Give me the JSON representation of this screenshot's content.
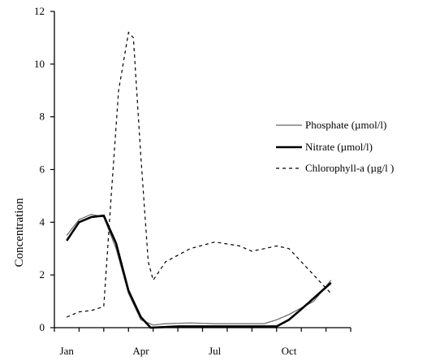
{
  "chart_data": {
    "type": "line",
    "ylabel": "Concentration",
    "xlabel": "",
    "title": "",
    "xlim": [
      0,
      12
    ],
    "ylim": [
      0,
      12
    ],
    "x_ticks": [
      {
        "label": "Jan",
        "x": 0.5
      },
      {
        "label": "Apr",
        "x": 3.5
      },
      {
        "label": "Jul",
        "x": 6.5
      },
      {
        "label": "Oct",
        "x": 9.5
      }
    ],
    "y_ticks": [
      0,
      2,
      4,
      6,
      8,
      10,
      12
    ],
    "legend_position": "right",
    "series": [
      {
        "name": "Phosphate (µmol/l)",
        "style": "thin",
        "color": "#666666",
        "points": [
          [
            0.5,
            3.5
          ],
          [
            1.0,
            4.1
          ],
          [
            1.5,
            4.3
          ],
          [
            2.0,
            4.2
          ],
          [
            2.5,
            3.0
          ],
          [
            3.0,
            1.3
          ],
          [
            3.5,
            0.3
          ],
          [
            4.0,
            0.1
          ],
          [
            4.5,
            0.15
          ],
          [
            5.5,
            0.18
          ],
          [
            6.5,
            0.15
          ],
          [
            7.5,
            0.15
          ],
          [
            8.5,
            0.15
          ],
          [
            9.0,
            0.3
          ],
          [
            9.5,
            0.5
          ],
          [
            10.5,
            1.0
          ],
          [
            11.2,
            1.8
          ]
        ]
      },
      {
        "name": "Nitrate (µmol/l)",
        "style": "thick",
        "color": "#000000",
        "points": [
          [
            0.5,
            3.3
          ],
          [
            1.0,
            4.0
          ],
          [
            1.5,
            4.2
          ],
          [
            2.0,
            4.25
          ],
          [
            2.5,
            3.2
          ],
          [
            3.0,
            1.4
          ],
          [
            3.5,
            0.4
          ],
          [
            3.9,
            0.0
          ],
          [
            5.0,
            0.05
          ],
          [
            6.5,
            0.05
          ],
          [
            8.0,
            0.05
          ],
          [
            9.0,
            0.05
          ],
          [
            9.5,
            0.3
          ],
          [
            10.0,
            0.7
          ],
          [
            11.2,
            1.7
          ]
        ]
      },
      {
        "name": "Chlorophyll-a (µg/l )",
        "style": "dashed",
        "color": "#000000",
        "points": [
          [
            0.5,
            0.4
          ],
          [
            1.0,
            0.6
          ],
          [
            1.5,
            0.65
          ],
          [
            2.0,
            0.8
          ],
          [
            2.3,
            5.0
          ],
          [
            2.6,
            9.0
          ],
          [
            3.0,
            11.2
          ],
          [
            3.2,
            11.0
          ],
          [
            3.5,
            6.5
          ],
          [
            3.8,
            2.5
          ],
          [
            4.0,
            1.8
          ],
          [
            4.5,
            2.5
          ],
          [
            5.5,
            3.0
          ],
          [
            6.5,
            3.25
          ],
          [
            7.5,
            3.1
          ],
          [
            8.0,
            2.9
          ],
          [
            8.5,
            3.0
          ],
          [
            9.0,
            3.1
          ],
          [
            9.5,
            3.0
          ],
          [
            10.5,
            2.0
          ],
          [
            11.2,
            1.3
          ]
        ]
      }
    ]
  }
}
